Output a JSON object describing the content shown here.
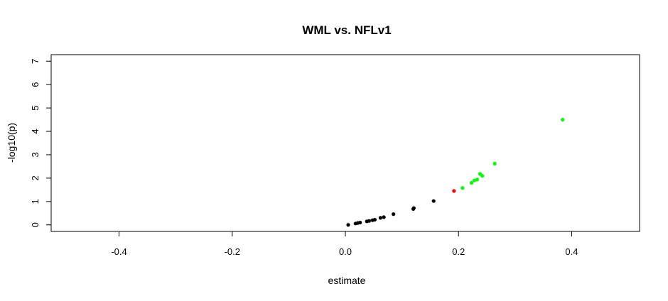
{
  "chart_data": {
    "type": "scatter",
    "title": "WML vs. NFLv1",
    "xlabel": "estimate",
    "ylabel": "-log10(p)",
    "xlim": [
      -0.52,
      0.52
    ],
    "ylim": [
      -0.28,
      7.28
    ],
    "x_ticks": [
      -0.4,
      -0.2,
      0.0,
      0.2,
      0.4
    ],
    "x_tick_labels": [
      "-0.4",
      "-0.2",
      "0.0",
      "0.2",
      "0.4"
    ],
    "y_ticks": [
      0,
      1,
      2,
      3,
      4,
      5,
      6,
      7
    ],
    "y_tick_labels": [
      "0",
      "1",
      "2",
      "3",
      "4",
      "5",
      "6",
      "7"
    ],
    "grid": false,
    "colors": {
      "black": "#000000",
      "red": "#ff0000",
      "green": "#00ff00"
    },
    "points": [
      {
        "x": 0.005,
        "y": 0.0,
        "color": "#000000"
      },
      {
        "x": 0.018,
        "y": 0.06,
        "color": "#000000"
      },
      {
        "x": 0.022,
        "y": 0.08,
        "color": "#000000"
      },
      {
        "x": 0.026,
        "y": 0.1,
        "color": "#000000"
      },
      {
        "x": 0.038,
        "y": 0.15,
        "color": "#000000"
      },
      {
        "x": 0.042,
        "y": 0.17,
        "color": "#000000"
      },
      {
        "x": 0.048,
        "y": 0.2,
        "color": "#000000"
      },
      {
        "x": 0.052,
        "y": 0.22,
        "color": "#000000"
      },
      {
        "x": 0.062,
        "y": 0.3,
        "color": "#000000"
      },
      {
        "x": 0.068,
        "y": 0.33,
        "color": "#000000"
      },
      {
        "x": 0.085,
        "y": 0.46,
        "color": "#000000"
      },
      {
        "x": 0.12,
        "y": 0.68,
        "color": "#000000"
      },
      {
        "x": 0.121,
        "y": 0.72,
        "color": "#000000"
      },
      {
        "x": 0.156,
        "y": 1.02,
        "color": "#000000"
      },
      {
        "x": 0.192,
        "y": 1.45,
        "color": "#ff0000"
      },
      {
        "x": 0.207,
        "y": 1.58,
        "color": "#00ff00"
      },
      {
        "x": 0.223,
        "y": 1.8,
        "color": "#00ff00"
      },
      {
        "x": 0.228,
        "y": 1.9,
        "color": "#00ff00"
      },
      {
        "x": 0.233,
        "y": 1.94,
        "color": "#00ff00"
      },
      {
        "x": 0.238,
        "y": 2.18,
        "color": "#00ff00"
      },
      {
        "x": 0.242,
        "y": 2.1,
        "color": "#00ff00"
      },
      {
        "x": 0.264,
        "y": 2.62,
        "color": "#00ff00"
      },
      {
        "x": 0.384,
        "y": 4.5,
        "color": "#00ff00"
      }
    ]
  }
}
